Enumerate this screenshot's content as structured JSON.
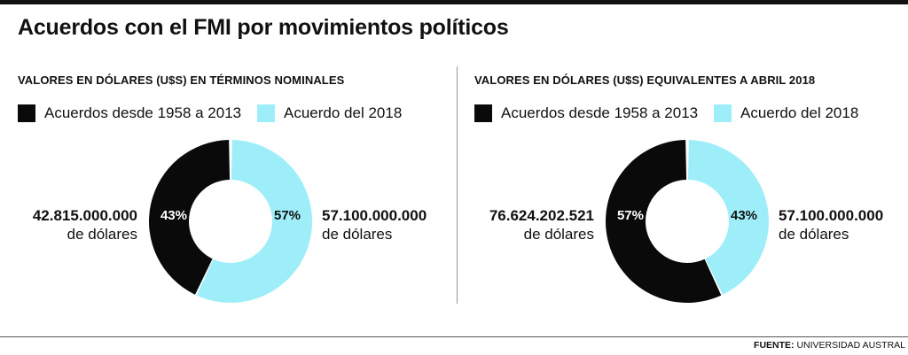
{
  "title": "Acuerdos con el FMI por movimientos políticos",
  "source_label": "FUENTE:",
  "source_value": "UNIVERSIDAD AUSTRAL",
  "colors": {
    "dark": "#0a0a0a",
    "light": "#9eeefa"
  },
  "chart_data": [
    {
      "type": "pie",
      "title": "VALORES EN DÓLARES (U$S) EN TÉRMINOS NOMINALES",
      "legend": [
        "Acuerdos desde 1958 a 2013",
        "Acuerdo del 2018"
      ],
      "slices": [
        {
          "label": "Acuerdos desde 1958 a 2013",
          "value": 43,
          "pct_label": "43%",
          "amount": "42.815.000.000",
          "unit": "de dólares"
        },
        {
          "label": "Acuerdo del 2018",
          "value": 57,
          "pct_label": "57%",
          "amount": "57.100.000.000",
          "unit": "de dólares"
        }
      ]
    },
    {
      "type": "pie",
      "title": "VALORES EN DÓLARES (U$S) EQUIVALENTES A ABRIL 2018",
      "legend": [
        "Acuerdos desde 1958 a 2013",
        "Acuerdo del 2018"
      ],
      "slices": [
        {
          "label": "Acuerdos desde 1958 a 2013",
          "value": 57,
          "pct_label": "57%",
          "amount": "76.624.202.521",
          "unit": "de dólares"
        },
        {
          "label": "Acuerdo del 2018",
          "value": 43,
          "pct_label": "43%",
          "amount": "57.100.000.000",
          "unit": "de dólares"
        }
      ]
    }
  ]
}
